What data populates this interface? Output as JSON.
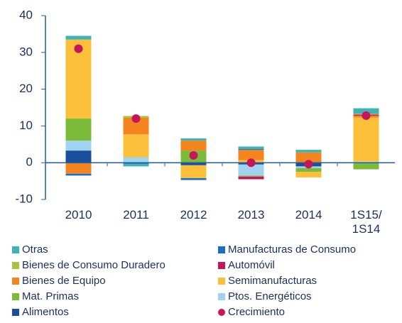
{
  "chart_data": {
    "type": "stacked_bar",
    "categories": [
      "2010",
      "2011",
      "2012",
      "2013",
      "2014",
      "1S15/\n1S14"
    ],
    "ylim": [
      -10,
      40
    ],
    "yticks": [
      -10,
      0,
      10,
      20,
      30,
      40
    ],
    "series": [
      {
        "name": "Otras",
        "color": "#3cb4b4",
        "values": [
          1,
          -0.7,
          0.6,
          0.7,
          0.7,
          1.5
        ]
      },
      {
        "name": "Manufacturas de Consumo",
        "color": "#1a6fc0",
        "values": [
          -0.5,
          0,
          -0.5,
          0.2,
          0,
          0
        ]
      },
      {
        "name": "Bienes de Consumo Duradero",
        "color": "#a8c43a",
        "values": [
          0,
          0.5,
          0,
          0,
          0,
          0.2
        ]
      },
      {
        "name": "Automóvil",
        "color": "#c8145a",
        "values": [
          0,
          0,
          0,
          -0.7,
          0,
          0.3
        ]
      },
      {
        "name": "Bienes de Equipo",
        "color": "#f5841f",
        "values": [
          -3,
          4.5,
          2.7,
          2.8,
          2.8,
          0.5
        ]
      },
      {
        "name": "Semimanufacturas",
        "color": "#fbbf3a",
        "values": [
          21.5,
          6.2,
          -3.5,
          0.7,
          -1.5,
          12
        ]
      },
      {
        "name": "Mat. Primas",
        "color": "#7cbb3a",
        "values": [
          6,
          0,
          3.3,
          -0.3,
          -1,
          -1.8
        ]
      },
      {
        "name": "Ptos. Energéticos",
        "color": "#9fd3f0",
        "values": [
          2.7,
          1.5,
          0,
          -3,
          -0.5,
          0.3
        ]
      },
      {
        "name": "Alimentos",
        "color": "#1a4f9c",
        "values": [
          3.3,
          -0.3,
          -0.7,
          -0.5,
          -1,
          0
        ]
      }
    ],
    "growth": {
      "name": "Crecimiento",
      "color": "#c8145a",
      "values": [
        31,
        12,
        2,
        0,
        -0.4,
        12.8
      ]
    }
  }
}
